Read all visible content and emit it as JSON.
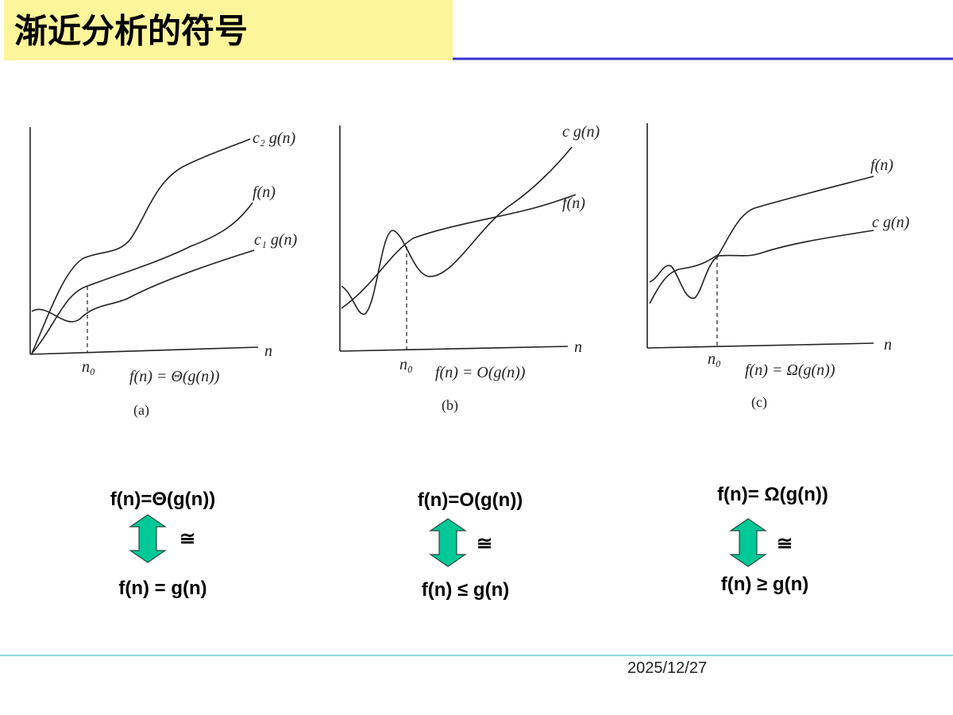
{
  "header": {
    "title": "渐近分析的符号"
  },
  "panels": [
    {
      "curve_labels": [
        "c₂ g(n)",
        "f(n)",
        "c₁ g(n)"
      ],
      "axis_label": "n",
      "n0": "n₀",
      "formula": "f(n) = Θ(g(n))",
      "caption": "(a)"
    },
    {
      "curve_labels": [
        "c g(n)",
        "f(n)"
      ],
      "axis_label": "n",
      "n0": "n₀",
      "formula": "f(n) = O(g(n))",
      "caption": "(b)"
    },
    {
      "curve_labels": [
        "f(n)",
        "c g(n)"
      ],
      "axis_label": "n",
      "n0": "n₀",
      "formula": "f(n) = Ω(g(n))",
      "caption": "(c)"
    }
  ],
  "equivalences": [
    {
      "notation": "f(n)=Θ(g(n))",
      "symbol": "≅",
      "relation": "f(n) = g(n)"
    },
    {
      "notation": "f(n)=O(g(n))",
      "symbol": "≅",
      "relation": "f(n) ≤ g(n)"
    },
    {
      "notation": "f(n)= Ω(g(n))",
      "symbol": "≅",
      "relation": "f(n) ≥ g(n)"
    }
  ],
  "footer": {
    "date": "2025/12/27"
  }
}
